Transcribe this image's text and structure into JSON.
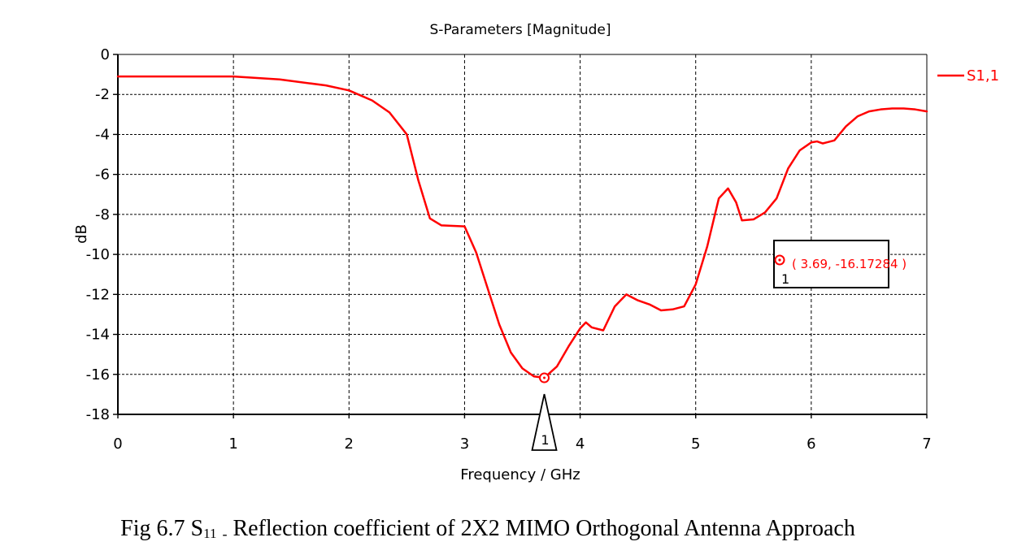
{
  "chart_data": {
    "type": "line",
    "title": "S-Parameters [Magnitude]",
    "xlabel": "Frequency / GHz",
    "ylabel": "dB",
    "xlim": [
      0,
      7
    ],
    "ylim": [
      -18,
      0
    ],
    "x_ticks": [
      "0",
      "1",
      "2",
      "3",
      "4",
      "5",
      "6",
      "7"
    ],
    "y_ticks": [
      "0",
      "-2",
      "-4",
      "-6",
      "-8",
      "-10",
      "-12",
      "-14",
      "-16",
      "-18"
    ],
    "grid": true,
    "legend_position": "right",
    "series": [
      {
        "name": "S1,1",
        "color": "#ff0000",
        "x": [
          0,
          1,
          1.4,
          1.8,
          2,
          2.2,
          2.35,
          2.5,
          2.6,
          2.7,
          2.8,
          3,
          3.1,
          3.2,
          3.3,
          3.4,
          3.5,
          3.6,
          3.69,
          3.8,
          3.9,
          4,
          4.05,
          4.1,
          4.2,
          4.3,
          4.4,
          4.5,
          4.6,
          4.7,
          4.8,
          4.9,
          5,
          5.1,
          5.2,
          5.28,
          5.35,
          5.4,
          5.5,
          5.6,
          5.7,
          5.8,
          5.9,
          6,
          6.05,
          6.1,
          6.2,
          6.3,
          6.4,
          6.5,
          6.6,
          6.7,
          6.8,
          6.9,
          7
        ],
        "values": [
          -1.1,
          -1.1,
          -1.25,
          -1.55,
          -1.8,
          -2.3,
          -2.9,
          -4,
          -6.3,
          -8.2,
          -8.55,
          -8.6,
          -9.9,
          -11.7,
          -13.5,
          -14.9,
          -15.7,
          -16.1,
          -16.17,
          -15.6,
          -14.6,
          -13.7,
          -13.4,
          -13.65,
          -13.8,
          -12.6,
          -12.0,
          -12.3,
          -12.5,
          -12.8,
          -12.75,
          -12.6,
          -11.5,
          -9.6,
          -7.2,
          -6.7,
          -7.4,
          -8.3,
          -8.25,
          -7.9,
          -7.2,
          -5.7,
          -4.8,
          -4.4,
          -4.35,
          -4.45,
          -4.3,
          -3.6,
          -3.1,
          -2.85,
          -2.75,
          -2.7,
          -2.7,
          -2.75,
          -2.85
        ]
      }
    ],
    "marker": {
      "id": "1",
      "x": 3.69,
      "y": -16.17284,
      "label": "( 3.69, -16.17284 )"
    }
  },
  "caption": {
    "prefix": "Fig 6.7 S",
    "subscript": "11",
    "separator": "-",
    "suffix": "Reflection coefficient of 2X2 MIMO Orthogonal Antenna Approach"
  }
}
